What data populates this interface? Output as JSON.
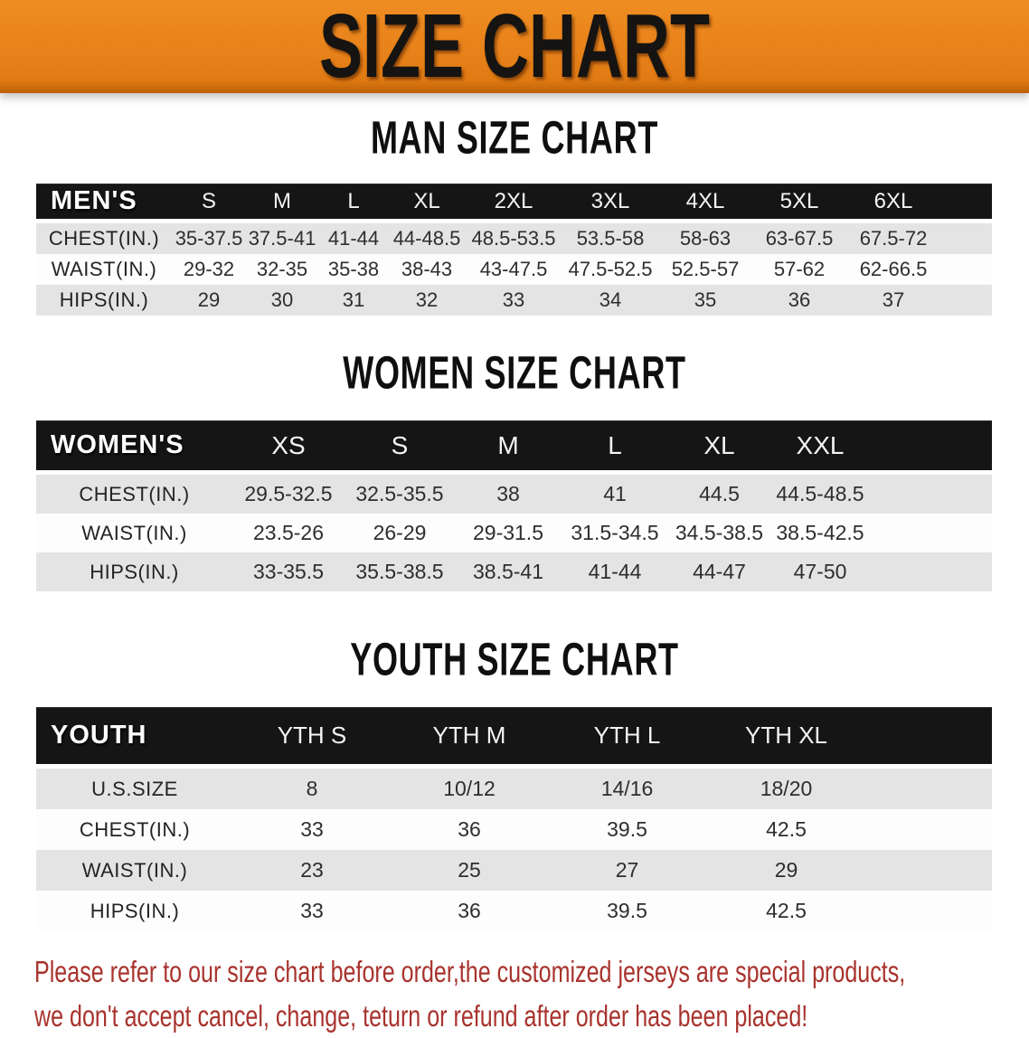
{
  "banner": {
    "title": "SIZE CHART"
  },
  "sections": {
    "men": {
      "heading": "MAN SIZE CHART",
      "table": {
        "label": "MEN'S",
        "sizes": [
          "S",
          "M",
          "L",
          "XL",
          "2XL",
          "3XL",
          "4XL",
          "5XL",
          "6XL"
        ],
        "rows": [
          {
            "label": "CHEST(IN.)",
            "values": [
              "35-37.5",
              "37.5-41",
              "41-44",
              "44-48.5",
              "48.5-53.5",
              "53.5-58",
              "58-63",
              "63-67.5",
              "67.5-72"
            ]
          },
          {
            "label": "WAIST(IN.)",
            "values": [
              "29-32",
              "32-35",
              "35-38",
              "38-43",
              "43-47.5",
              "47.5-52.5",
              "52.5-57",
              "57-62",
              "62-66.5"
            ]
          },
          {
            "label": "HIPS(IN.)",
            "values": [
              "29",
              "30",
              "31",
              "32",
              "33",
              "34",
              "35",
              "36",
              "37"
            ]
          }
        ]
      }
    },
    "women": {
      "heading": "WOMEN SIZE CHART",
      "table": {
        "label": "WOMEN'S",
        "sizes": [
          "XS",
          "S",
          "M",
          "L",
          "XL",
          "XXL"
        ],
        "rows": [
          {
            "label": "CHEST(IN.)",
            "values": [
              "29.5-32.5",
              "32.5-35.5",
              "38",
              "41",
              "44.5",
              "44.5-48.5"
            ]
          },
          {
            "label": "WAIST(IN.)",
            "values": [
              "23.5-26",
              "26-29",
              "29-31.5",
              "31.5-34.5",
              "34.5-38.5",
              "38.5-42.5"
            ]
          },
          {
            "label": "HIPS(IN.)",
            "values": [
              "33-35.5",
              "35.5-38.5",
              "38.5-41",
              "41-44",
              "44-47",
              "47-50"
            ]
          }
        ]
      }
    },
    "youth": {
      "heading": "YOUTH SIZE CHART",
      "table": {
        "label": "YOUTH",
        "sizes": [
          "YTH S",
          "YTH M",
          "YTH L",
          "YTH XL"
        ],
        "rows": [
          {
            "label": "U.S.SIZE",
            "values": [
              "8",
              "10/12",
              "14/16",
              "18/20"
            ]
          },
          {
            "label": "CHEST(IN.)",
            "values": [
              "33",
              "36",
              "39.5",
              "42.5"
            ]
          },
          {
            "label": "WAIST(IN.)",
            "values": [
              "23",
              "25",
              "27",
              "29"
            ]
          },
          {
            "label": "HIPS(IN.)",
            "values": [
              "33",
              "36",
              "39.5",
              "42.5"
            ]
          }
        ]
      }
    }
  },
  "footer": {
    "line1": "Please refer to our size chart before order,the customized jerseys are special products,",
    "line2": "we don't accept cancel, change, teturn or refund after order has been placed!"
  },
  "colors": {
    "banner_orange": "#e8821a",
    "table_header_black": "#151515",
    "row_gray": "#e4e4e4",
    "row_white": "#fdfdfd",
    "disclaimer_red": "#a8332d"
  }
}
